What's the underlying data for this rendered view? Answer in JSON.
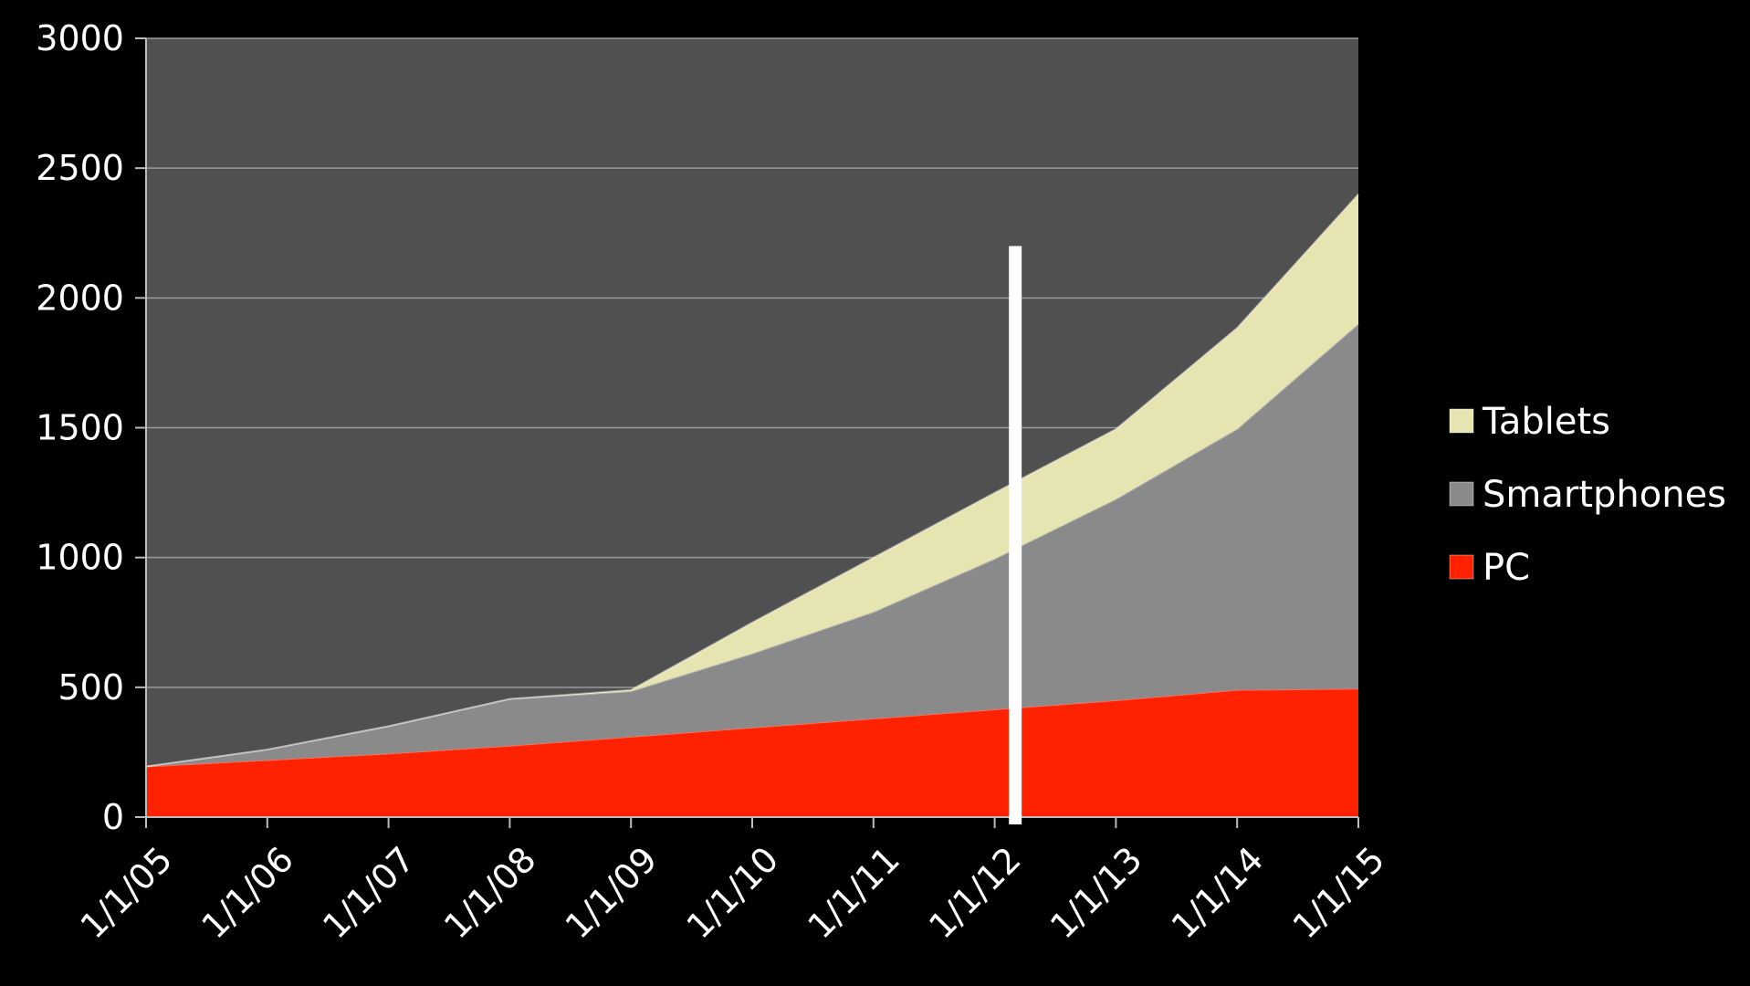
{
  "chart_data": {
    "type": "area",
    "stacked": true,
    "categories": [
      "1/1/05",
      "1/1/06",
      "1/1/07",
      "1/1/08",
      "1/1/09",
      "1/1/10",
      "1/1/11",
      "1/1/12",
      "1/1/13",
      "1/1/14",
      "1/1/15"
    ],
    "series": [
      {
        "name": "PC",
        "color": "#ff2200",
        "values": [
          195,
          220,
          245,
          275,
          310,
          345,
          380,
          415,
          450,
          490,
          495
        ]
      },
      {
        "name": "Smartphones",
        "color": "#8a8a8a",
        "values": [
          0,
          40,
          105,
          180,
          175,
          285,
          410,
          580,
          775,
          1005,
          1405
        ]
      },
      {
        "name": "Tablets",
        "color": "#e6e4b0",
        "values": [
          0,
          0,
          0,
          0,
          5,
          120,
          210,
          255,
          270,
          390,
          500
        ]
      }
    ],
    "yticks": [
      "0",
      "500",
      "1000",
      "1500",
      "2000",
      "2500",
      "3000"
    ],
    "ylim": [
      0,
      3000
    ],
    "grid": true,
    "legend": [
      "Tablets",
      "Smartphones",
      "PC"
    ],
    "legend_position": "right",
    "plot_background": "#505050",
    "marker_line": {
      "x_between": [
        "1/1/12",
        "1/1/13"
      ],
      "fraction": 0.17,
      "top_value": 2200,
      "color": "#ffffff"
    }
  }
}
